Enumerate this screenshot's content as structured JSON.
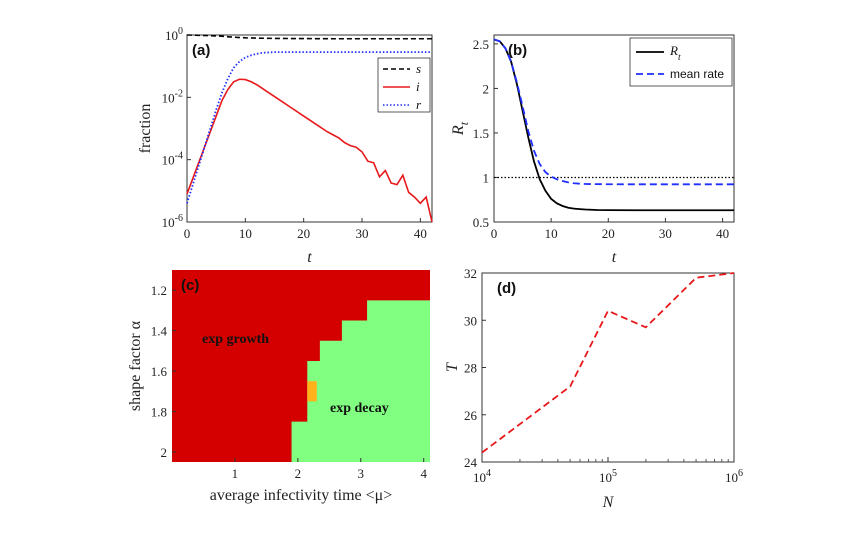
{
  "colors": {
    "s": "#000000",
    "i": "#e8191c",
    "r": "#1f2fff",
    "Rt": "#000000",
    "mean": "#1f2fff",
    "growth": "#d40000",
    "decay": "#80ff80",
    "border": "#ffb21a",
    "d_line": "#e8191c"
  },
  "chart_data": [
    {
      "type": "line",
      "panel_label": "(a)",
      "xlabel": "t",
      "ylabel": "fraction",
      "xlim": [
        0,
        42
      ],
      "ylim_log10": [
        -6,
        0
      ],
      "yscale": "log",
      "x_ticks": [
        "0",
        "10",
        "20",
        "30",
        "40"
      ],
      "y_ticks": [
        {
          "base": "10",
          "exp": "0",
          "v": 0
        },
        {
          "base": "10",
          "exp": "-2",
          "v": -2
        },
        {
          "base": "10",
          "exp": "-4",
          "v": -4
        },
        {
          "base": "10",
          "exp": "-6",
          "v": -6
        }
      ],
      "legend": [
        "s",
        "i",
        "r"
      ],
      "series": [
        {
          "name": "s",
          "x": [
            0,
            2,
            4,
            6,
            8,
            10,
            12,
            15,
            20,
            25,
            30,
            35,
            42
          ],
          "log10y": [
            0,
            -0.01,
            -0.02,
            -0.04,
            -0.07,
            -0.09,
            -0.1,
            -0.11,
            -0.115,
            -0.12,
            -0.12,
            -0.12,
            -0.12
          ]
        },
        {
          "name": "i",
          "x": [
            0,
            1,
            2,
            3,
            4,
            5,
            6,
            7,
            8,
            9,
            10,
            11,
            12,
            14,
            16,
            18,
            20,
            22,
            24,
            25,
            26,
            27,
            28,
            29,
            30,
            31,
            32,
            33,
            34,
            35,
            36,
            37,
            38,
            39,
            40,
            41,
            42
          ],
          "log10y": [
            -5.1,
            -4.6,
            -4.1,
            -3.6,
            -3.1,
            -2.6,
            -2.1,
            -1.75,
            -1.5,
            -1.42,
            -1.43,
            -1.5,
            -1.6,
            -1.85,
            -2.1,
            -2.35,
            -2.6,
            -2.85,
            -3.1,
            -3.2,
            -3.3,
            -3.45,
            -3.55,
            -3.6,
            -3.75,
            -4.05,
            -4.1,
            -4.55,
            -4.35,
            -4.75,
            -4.8,
            -4.5,
            -5.05,
            -5.2,
            -5.4,
            -5.2,
            -6.0
          ]
        },
        {
          "name": "r",
          "x": [
            0,
            1,
            2,
            3,
            4,
            5,
            6,
            7,
            8,
            9,
            10,
            11,
            12,
            13,
            14,
            15,
            17,
            20,
            25,
            30,
            35,
            42
          ],
          "log10y": [
            -5.4,
            -4.8,
            -4.2,
            -3.6,
            -3.0,
            -2.4,
            -1.85,
            -1.4,
            -1.05,
            -0.85,
            -0.72,
            -0.65,
            -0.6,
            -0.57,
            -0.56,
            -0.55,
            -0.55,
            -0.55,
            -0.55,
            -0.55,
            -0.55,
            -0.55
          ]
        }
      ]
    },
    {
      "type": "line",
      "panel_label": "(b)",
      "xlabel": "t",
      "ylabel": "R",
      "ylabel_sub": "t",
      "xlim": [
        0,
        42
      ],
      "ylim": [
        0.5,
        2.6
      ],
      "x_ticks": [
        "0",
        "10",
        "20",
        "30",
        "40"
      ],
      "y_ticks": [
        "0.5",
        "1",
        "1.5",
        "2",
        "2.5"
      ],
      "legend": [
        {
          "text": "R",
          "sub": "t"
        },
        {
          "text": "mean rate",
          "sub": ""
        }
      ],
      "hline": 1,
      "series": [
        {
          "name": "R_t",
          "x": [
            0,
            1,
            2,
            3,
            4,
            5,
            6,
            7,
            8,
            9,
            10,
            11,
            12,
            13,
            14,
            15,
            16,
            18,
            20,
            25,
            30,
            35,
            42
          ],
          "y": [
            2.55,
            2.53,
            2.45,
            2.3,
            2.05,
            1.75,
            1.45,
            1.18,
            0.98,
            0.85,
            0.76,
            0.71,
            0.68,
            0.66,
            0.65,
            0.645,
            0.64,
            0.635,
            0.633,
            0.632,
            0.632,
            0.632,
            0.632
          ]
        },
        {
          "name": "mean rate",
          "x": [
            0,
            1,
            2,
            3,
            4,
            5,
            6,
            7,
            8,
            9,
            10,
            11,
            12,
            13,
            14,
            15,
            16,
            18,
            20,
            25,
            30,
            35,
            42
          ],
          "y": [
            2.55,
            2.53,
            2.45,
            2.3,
            2.07,
            1.8,
            1.52,
            1.3,
            1.15,
            1.06,
            1.01,
            0.98,
            0.96,
            0.945,
            0.935,
            0.93,
            0.927,
            0.925,
            0.924,
            0.923,
            0.923,
            0.923,
            0.923
          ]
        }
      ]
    },
    {
      "type": "heatmap",
      "panel_label": "(c)",
      "xlabel": "average infectivity time <μ>",
      "ylabel": "shape factor α",
      "xlim": [
        0,
        4.1
      ],
      "ylim": [
        1.1,
        2.05
      ],
      "x_ticks": [
        "1",
        "2",
        "3",
        "4"
      ],
      "y_ticks": [
        "1.2",
        "1.4",
        "1.6",
        "1.8",
        "2"
      ],
      "regions": [
        "exp growth",
        "exp decay"
      ],
      "boundary": [
        [
          4.1,
          1.25
        ],
        [
          3.1,
          1.25
        ],
        [
          3.1,
          1.35
        ],
        [
          2.7,
          1.35
        ],
        [
          2.7,
          1.45
        ],
        [
          2.35,
          1.45
        ],
        [
          2.35,
          1.55
        ],
        [
          2.15,
          1.55
        ],
        [
          2.15,
          1.85
        ],
        [
          1.9,
          1.85
        ],
        [
          1.9,
          2.05
        ]
      ],
      "boundary_cells": [
        [
          2.15,
          2.3,
          1.65,
          1.75
        ]
      ]
    },
    {
      "type": "line",
      "panel_label": "(d)",
      "xlabel": "N",
      "ylabel": "T",
      "xscale": "log",
      "xlim_log10": [
        4,
        6
      ],
      "ylim": [
        24,
        32
      ],
      "x_ticks": [
        {
          "base": "10",
          "exp": "4",
          "v": 4
        },
        {
          "base": "10",
          "exp": "5",
          "v": 5
        },
        {
          "base": "10",
          "exp": "6",
          "v": 6
        }
      ],
      "y_ticks": [
        "24",
        "26",
        "28",
        "30",
        "32"
      ],
      "series": [
        {
          "name": "T",
          "log10x": [
            4,
            4.4,
            4.7,
            5,
            5.3,
            5.7,
            6
          ],
          "y": [
            24.4,
            26,
            27.2,
            30.4,
            29.7,
            31.8,
            32
          ]
        }
      ]
    }
  ]
}
